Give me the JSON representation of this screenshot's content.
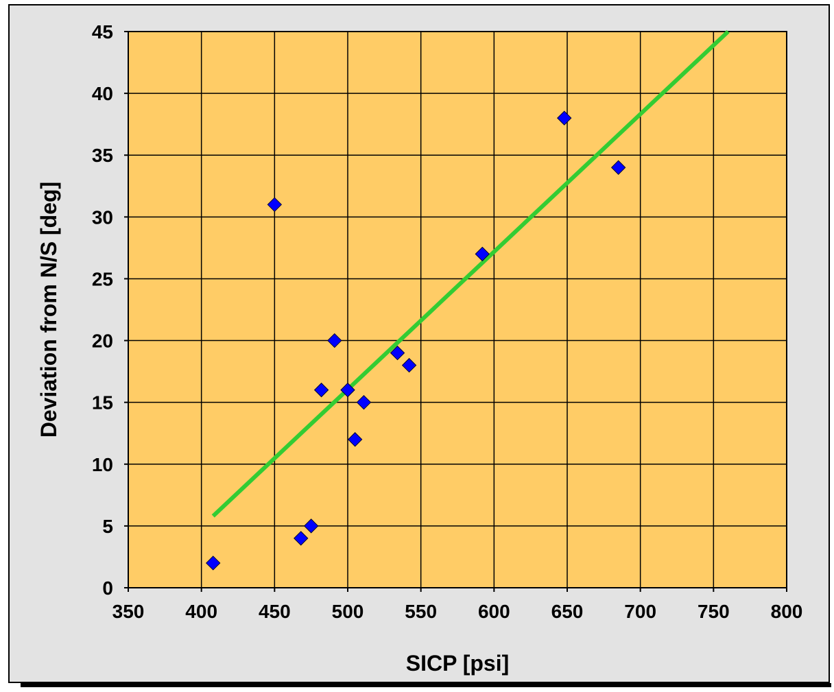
{
  "chart_data": {
    "type": "scatter",
    "title": "",
    "xlabel": "SICP [psi]",
    "ylabel": "Deviation from N/S [deg]",
    "xlim": [
      350,
      800
    ],
    "ylim": [
      0,
      45
    ],
    "xticks": [
      350,
      400,
      450,
      500,
      550,
      600,
      650,
      700,
      750,
      800
    ],
    "yticks": [
      0,
      5,
      10,
      15,
      20,
      25,
      30,
      35,
      40,
      45
    ],
    "grid": true,
    "legend": "none",
    "series": [
      {
        "marker": "diamond",
        "color": "#0000ff",
        "points": [
          {
            "x": 408,
            "y": 2
          },
          {
            "x": 450,
            "y": 31
          },
          {
            "x": 468,
            "y": 4
          },
          {
            "x": 475,
            "y": 5
          },
          {
            "x": 482,
            "y": 16
          },
          {
            "x": 491,
            "y": 20
          },
          {
            "x": 500,
            "y": 16
          },
          {
            "x": 505,
            "y": 12
          },
          {
            "x": 511,
            "y": 15
          },
          {
            "x": 534,
            "y": 19
          },
          {
            "x": 542,
            "y": 18
          },
          {
            "x": 592,
            "y": 27
          },
          {
            "x": 648,
            "y": 38
          },
          {
            "x": 685,
            "y": 34
          }
        ]
      }
    ],
    "trendline": {
      "color": "#33cc33",
      "from": {
        "x": 408,
        "y": 5.8
      },
      "to": {
        "x": 760,
        "y": 45
      }
    }
  },
  "colors": {
    "plot_background": "#ffcc66",
    "frame_background": "#e3e3e3",
    "marker": "#0000ff",
    "trendline": "#33cc33",
    "grid": "#000000"
  }
}
